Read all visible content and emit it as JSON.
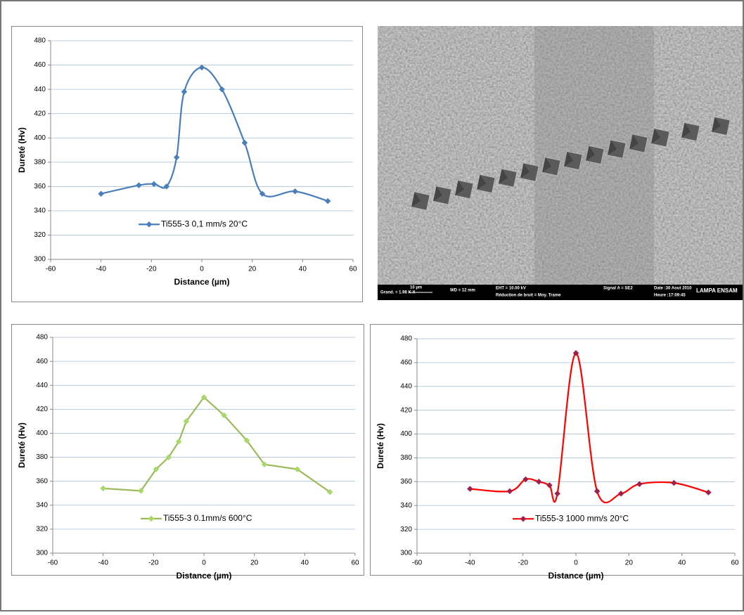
{
  "chart_data": [
    {
      "type": "line",
      "smooth": true,
      "grid": true,
      "legend": "bottom",
      "x_label": "Distance (µm)",
      "y_label": "Dureté (Hv)",
      "xlim": [
        -60,
        60
      ],
      "xticks": [
        -60,
        -40,
        -20,
        0,
        20,
        40,
        60
      ],
      "ylim": [
        300,
        480
      ],
      "yticks": [
        300,
        320,
        340,
        360,
        380,
        400,
        420,
        440,
        460,
        480
      ],
      "series": [
        {
          "name": "Ti555-3  0,1 mm/s 20°C",
          "color": "#4a7ebb",
          "marker_color": "#4a7ebb",
          "x": [
            -40,
            -25,
            -19,
            -14,
            -10,
            -7,
            0,
            8,
            17,
            24,
            37,
            50
          ],
          "values": [
            354,
            361,
            362,
            360,
            384,
            438,
            458,
            440,
            396,
            354,
            356,
            348
          ]
        }
      ]
    },
    {
      "type": "line",
      "smooth": false,
      "grid": true,
      "legend": "bottom",
      "x_label": "Distance (µm)",
      "y_label": "Dureté (Hv)",
      "xlim": [
        -60,
        60
      ],
      "xticks": [
        -60,
        -40,
        -20,
        0,
        20,
        40,
        60
      ],
      "ylim": [
        300,
        480
      ],
      "yticks": [
        300,
        320,
        340,
        360,
        380,
        400,
        420,
        440,
        460,
        480
      ],
      "series": [
        {
          "name": "Ti555-3 0.1mm/s  600°C",
          "color": "#9bbb59",
          "marker_color": "#a6d96a",
          "x": [
            -40,
            -25,
            -19,
            -14,
            -10,
            -7,
            0,
            8,
            17,
            24,
            37,
            50
          ],
          "values": [
            354,
            352,
            370,
            380,
            393,
            410,
            430,
            415,
            394,
            374,
            370,
            351
          ]
        }
      ]
    },
    {
      "type": "line",
      "smooth": true,
      "grid": true,
      "legend": "bottom",
      "x_label": "Distance (µm)",
      "y_label": "Dureté (Hv)",
      "xlim": [
        -60,
        60
      ],
      "xticks": [
        -60,
        -40,
        -20,
        0,
        20,
        40,
        60
      ],
      "ylim": [
        300,
        480
      ],
      "yticks": [
        300,
        320,
        340,
        360,
        380,
        400,
        420,
        440,
        460,
        480
      ],
      "series": [
        {
          "name": "Ti555-3  1000 mm/s 20°C",
          "color": "#ff0000",
          "marker_color": "#a0204a",
          "x": [
            -40,
            -25,
            -19,
            -14,
            -10,
            -7,
            0,
            8,
            17,
            24,
            37,
            50
          ],
          "values": [
            354,
            352,
            362,
            360,
            357,
            350,
            468,
            352,
            350,
            358,
            359,
            351
          ]
        }
      ]
    }
  ],
  "sem_image": {
    "magnification": "Grand. =   1.98 K X",
    "scale_bar": "10 µm",
    "wd": "WD =   12 mm",
    "eht": "EHT = 10.00 kV",
    "noise": "Réduction de bruit = Moy. Trame",
    "signal": "Signal A = SE2",
    "date": "Date :30 Aout 2010",
    "time": "Heure :17:09:45",
    "lab": "LAMPA ENSAM"
  }
}
